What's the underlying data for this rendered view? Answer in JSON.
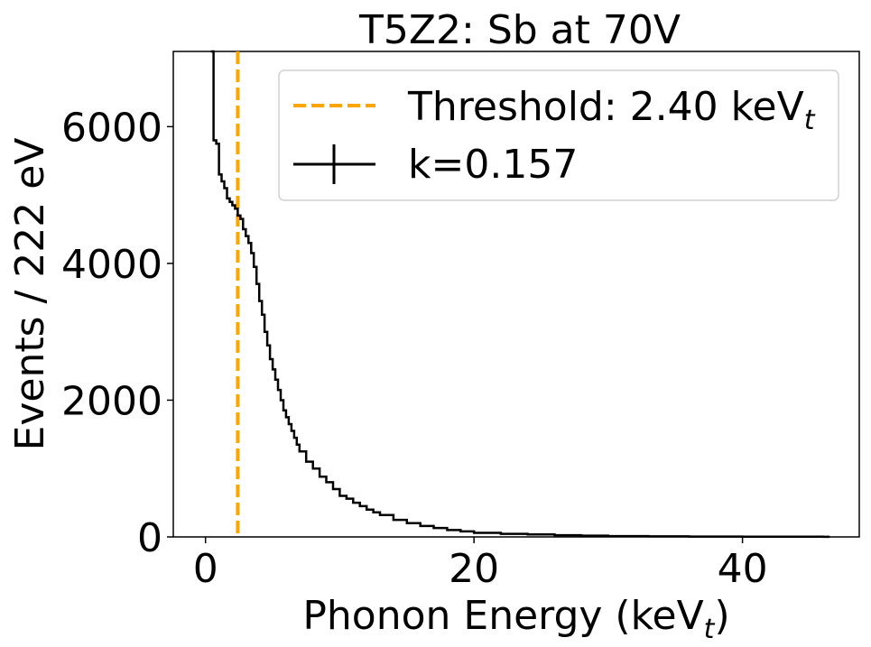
{
  "chart_data": {
    "type": "line",
    "title": "T5Z2: Sb at 70V",
    "xlabel": {
      "main": "Phonon Energy (keV",
      "sub": "t",
      "end": ")"
    },
    "ylabel": "Events / 222 eV",
    "xlim": [
      -2.4,
      48.7
    ],
    "ylim": [
      0,
      7100
    ],
    "xticks": [
      {
        "value": 0,
        "label": "0"
      },
      {
        "value": 20,
        "label": "20"
      },
      {
        "value": 40,
        "label": "40"
      }
    ],
    "yticks": [
      {
        "value": 0,
        "label": "0"
      },
      {
        "value": 2000,
        "label": "2000"
      },
      {
        "value": 4000,
        "label": "4000"
      },
      {
        "value": 6000,
        "label": "6000"
      }
    ],
    "grid": false,
    "legend_position": "top-right",
    "threshold": {
      "x": 2.4,
      "color": "#FFA500",
      "label_main": "Threshold: 2.40 keV",
      "label_sub": "t"
    },
    "series": [
      {
        "name": "k=0.157",
        "color": "#000000",
        "style": "step",
        "x": [
          0.4,
          0.6,
          0.8,
          1.0,
          1.2,
          1.4,
          1.6,
          1.8,
          2.0,
          2.2,
          2.4,
          2.6,
          2.8,
          3.0,
          3.2,
          3.4,
          3.6,
          3.8,
          4.0,
          4.2,
          4.4,
          4.6,
          4.8,
          5.0,
          5.2,
          5.4,
          5.6,
          5.8,
          6.0,
          6.2,
          6.4,
          6.6,
          6.8,
          7.0,
          7.5,
          8.0,
          8.5,
          9.0,
          9.5,
          10.0,
          10.5,
          11.0,
          11.5,
          12.0,
          12.5,
          13.0,
          14.0,
          15.0,
          16.0,
          17.0,
          18.0,
          19.0,
          20.0,
          22.0,
          24.0,
          26.0,
          28.0,
          30.0,
          33.0,
          36.0,
          40.0,
          46.0
        ],
        "y": [
          7100,
          5800,
          5750,
          5300,
          5200,
          5100,
          4950,
          4900,
          4850,
          4800,
          4700,
          4650,
          4500,
          4400,
          4300,
          4150,
          3950,
          3700,
          3450,
          3250,
          3000,
          2800,
          2600,
          2450,
          2300,
          2150,
          2000,
          1850,
          1750,
          1650,
          1550,
          1450,
          1350,
          1250,
          1100,
          1000,
          880,
          800,
          700,
          600,
          560,
          500,
          450,
          400,
          360,
          320,
          250,
          200,
          160,
          130,
          100,
          80,
          60,
          45,
          35,
          25,
          18,
          12,
          8,
          5,
          3,
          1
        ]
      }
    ]
  }
}
